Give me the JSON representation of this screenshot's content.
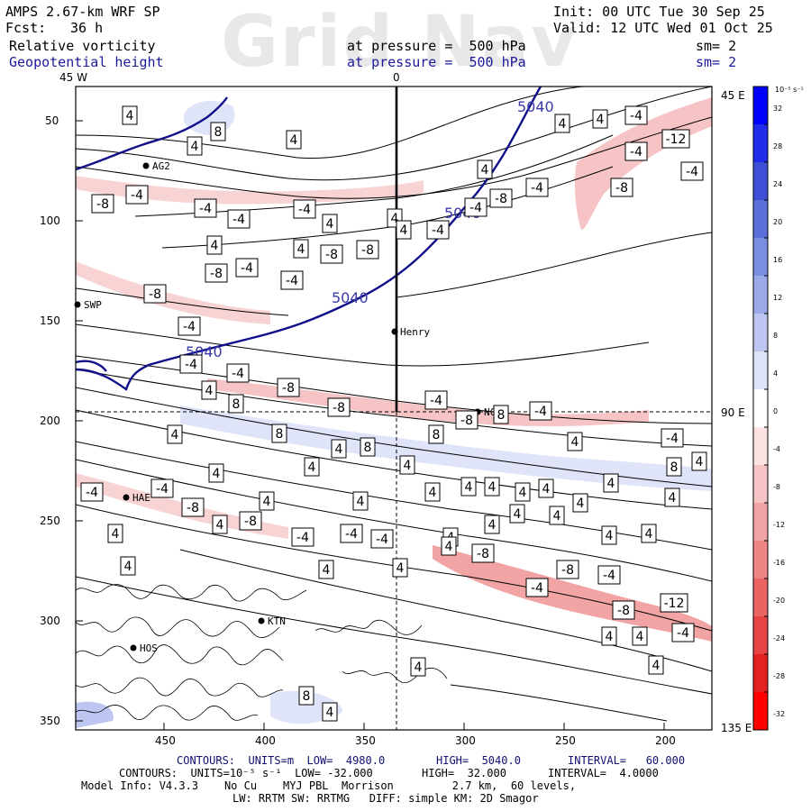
{
  "header": {
    "title": "AMPS 2.67-km WRF SP",
    "init": "Init: 00 UTC Tue 30 Sep 25",
    "fcst_label": "Fcst:",
    "fcst_value": "36 h",
    "valid": "Valid: 12 UTC Wed 01 Oct 25",
    "field1_name": "Relative vorticity",
    "field1_level": "at pressure =  500 hPa",
    "field1_sm": "sm= 2",
    "field2_name": "Geopotential height",
    "field2_level": "at pressure =  500 hPa",
    "field2_sm": "sm= 2",
    "watermark": "Grid Nav"
  },
  "frame_labels": {
    "top_left": "45 W",
    "top_mid": "0",
    "right_top": "45 E",
    "right_mid": "90 E",
    "right_bottom": "135 E"
  },
  "y_ticks": [
    "50",
    "100",
    "150",
    "200",
    "250",
    "300",
    "350"
  ],
  "x_ticks": [
    "450",
    "400",
    "350",
    "300",
    "250",
    "200"
  ],
  "stations": [
    {
      "name": "AG2"
    },
    {
      "name": "SWP"
    },
    {
      "name": "Henry"
    },
    {
      "name": "NCO"
    },
    {
      "name": "HAE"
    },
    {
      "name": "KTN"
    },
    {
      "name": "HOS"
    }
  ],
  "height_contour_label": "5040",
  "vorticity_labels": [
    "4",
    "8",
    "-4",
    "-8",
    "-12"
  ],
  "colorbar": {
    "unit": "10⁻⁵ s⁻¹",
    "ticks": [
      "32",
      "28",
      "24",
      "20",
      "16",
      "12",
      "8",
      "4",
      "0",
      "-4",
      "-8",
      "-12",
      "-16",
      "-20",
      "-24",
      "-28",
      "-32"
    ],
    "colors": [
      "#0000ff",
      "#1f2be6",
      "#3c4fd6",
      "#5a6fd8",
      "#7a8ee0",
      "#9aaae8",
      "#bcc6f0",
      "#dfe4f8",
      "#ffffff",
      "#fbe3e3",
      "#f6c4c4",
      "#f2a4a4",
      "#ee8484",
      "#ea6464",
      "#e64444",
      "#e22222",
      "#ff0000"
    ]
  },
  "footer": {
    "line1_a": "CONTOURS:  UNITS=m  LOW=  4980.0",
    "line1_b": "HIGH=  5040.0",
    "line1_c": "INTERVAL=   60.000",
    "line2_a": "CONTOURS:  UNITS=10⁻⁵ s⁻¹  LOW= -32.000",
    "line2_b": "HIGH=  32.000",
    "line2_c": "INTERVAL=  4.0000",
    "line3": "Model Info: V4.3.3    No Cu    MYJ PBL  Morrison         2.7 km,  60 levels,",
    "line4": "LW: RRTM SW: RRTMG   DIFF: simple KM: 2D Smagor"
  }
}
